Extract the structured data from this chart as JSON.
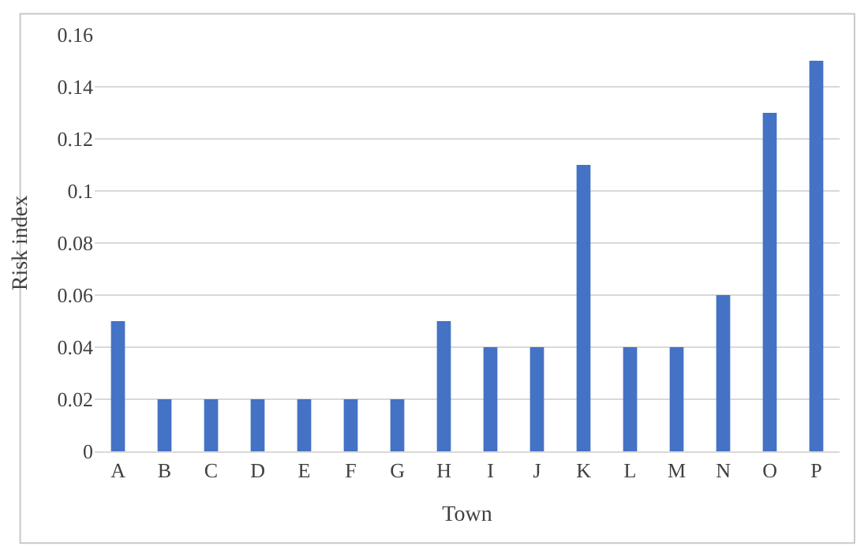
{
  "chart_data": {
    "type": "bar",
    "xlabel": "Town",
    "ylabel": "Risk index",
    "categories": [
      "A",
      "B",
      "C",
      "D",
      "E",
      "F",
      "G",
      "H",
      "I",
      "J",
      "K",
      "L",
      "M",
      "N",
      "O",
      "P"
    ],
    "values": [
      0.05,
      0.02,
      0.02,
      0.02,
      0.02,
      0.02,
      0.02,
      0.05,
      0.04,
      0.04,
      0.11,
      0.04,
      0.04,
      0.06,
      0.13,
      0.15
    ],
    "color": "#4472c4",
    "ylim": [
      0,
      0.16
    ],
    "yticks": [
      0,
      0.02,
      0.04,
      0.06,
      0.08,
      0.1,
      0.12,
      0.14,
      0.16
    ],
    "grid": "y"
  }
}
